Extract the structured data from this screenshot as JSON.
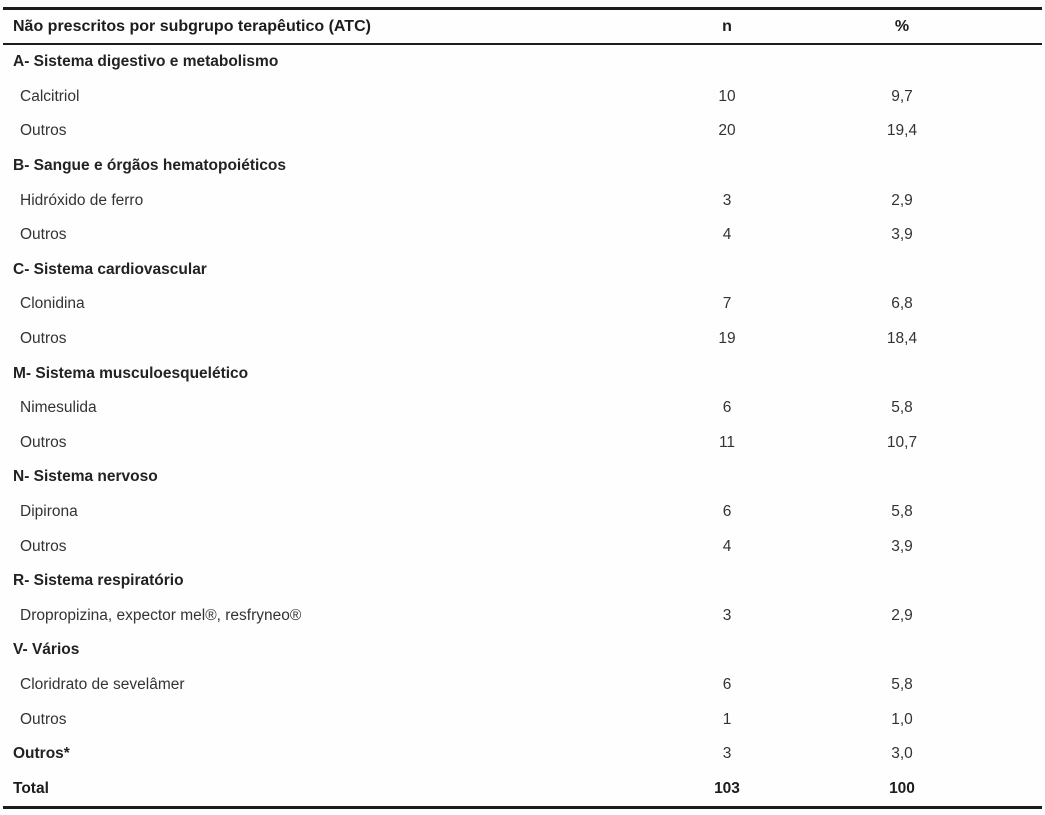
{
  "table": {
    "header": {
      "col1": "Não prescritos por subgrupo terapêutico (ATC)",
      "col2": "n",
      "col3": "%"
    },
    "rows": [
      {
        "type": "group",
        "label": "A- Sistema digestivo e metabolismo",
        "n": "",
        "pct": ""
      },
      {
        "type": "item",
        "label": "Calcitriol",
        "n": "10",
        "pct": "9,7"
      },
      {
        "type": "item",
        "label": "Outros",
        "n": "20",
        "pct": "19,4"
      },
      {
        "type": "group",
        "label": "B- Sangue e órgãos hematopoiéticos",
        "n": "",
        "pct": ""
      },
      {
        "type": "item",
        "label": "Hidróxido de ferro",
        "n": "3",
        "pct": "2,9"
      },
      {
        "type": "item",
        "label": "Outros",
        "n": "4",
        "pct": "3,9"
      },
      {
        "type": "group",
        "label": "C- Sistema cardiovascular",
        "n": "",
        "pct": ""
      },
      {
        "type": "item",
        "label": "Clonidina",
        "n": "7",
        "pct": "6,8"
      },
      {
        "type": "item",
        "label": "Outros",
        "n": "19",
        "pct": "18,4"
      },
      {
        "type": "group",
        "label": "M- Sistema musculoesquelético",
        "n": "",
        "pct": ""
      },
      {
        "type": "item",
        "label": "Nimesulida",
        "n": "6",
        "pct": "5,8"
      },
      {
        "type": "item",
        "label": "Outros",
        "n": "11",
        "pct": "10,7"
      },
      {
        "type": "group",
        "label": "N- Sistema nervoso",
        "n": "",
        "pct": ""
      },
      {
        "type": "item",
        "label": "Dipirona",
        "n": "6",
        "pct": "5,8"
      },
      {
        "type": "item",
        "label": "Outros",
        "n": "4",
        "pct": "3,9"
      },
      {
        "type": "group",
        "label": "R- Sistema respiratório",
        "n": "",
        "pct": ""
      },
      {
        "type": "item",
        "label": "Dropropizina, expector mel®, resfryneo®",
        "n": "3",
        "pct": "2,9"
      },
      {
        "type": "group",
        "label": "V- Vários",
        "n": "",
        "pct": ""
      },
      {
        "type": "item",
        "label": "Cloridrato de sevelâmer",
        "n": "6",
        "pct": "5,8"
      },
      {
        "type": "item",
        "label": "Outros",
        "n": "1",
        "pct": "1,0"
      },
      {
        "type": "summary",
        "label": "Outros*",
        "n": "3",
        "pct": "3,0"
      },
      {
        "type": "total",
        "label": "Total",
        "n": "103",
        "pct": "100"
      }
    ]
  },
  "chart_data": {
    "type": "table",
    "title": "Não prescritos por subgrupo terapêutico (ATC)",
    "columns": [
      "Não prescritos por subgrupo terapêutico (ATC)",
      "n",
      "%"
    ],
    "groups": [
      {
        "group": "A- Sistema digestivo e metabolismo",
        "entries": [
          {
            "label": "Calcitriol",
            "n": 10,
            "pct": "9,7"
          },
          {
            "label": "Outros",
            "n": 20,
            "pct": "19,4"
          }
        ]
      },
      {
        "group": "B- Sangue e órgãos hematopoiéticos",
        "entries": [
          {
            "label": "Hidróxido de ferro",
            "n": 3,
            "pct": "2,9"
          },
          {
            "label": "Outros",
            "n": 4,
            "pct": "3,9"
          }
        ]
      },
      {
        "group": "C- Sistema cardiovascular",
        "entries": [
          {
            "label": "Clonidina",
            "n": 7,
            "pct": "6,8"
          },
          {
            "label": "Outros",
            "n": 19,
            "pct": "18,4"
          }
        ]
      },
      {
        "group": "M- Sistema musculoesquelético",
        "entries": [
          {
            "label": "Nimesulida",
            "n": 6,
            "pct": "5,8"
          },
          {
            "label": "Outros",
            "n": 11,
            "pct": "10,7"
          }
        ]
      },
      {
        "group": "N- Sistema nervoso",
        "entries": [
          {
            "label": "Dipirona",
            "n": 6,
            "pct": "5,8"
          },
          {
            "label": "Outros",
            "n": 4,
            "pct": "3,9"
          }
        ]
      },
      {
        "group": "R- Sistema respiratório",
        "entries": [
          {
            "label": "Dropropizina, expector mel®, resfryneo®",
            "n": 3,
            "pct": "2,9"
          }
        ]
      },
      {
        "group": "V- Vários",
        "entries": [
          {
            "label": "Cloridrato de sevelâmer",
            "n": 6,
            "pct": "5,8"
          },
          {
            "label": "Outros",
            "n": 1,
            "pct": "1,0"
          }
        ]
      },
      {
        "group": "Outros*",
        "entries": [
          {
            "label": "Outros*",
            "n": 3,
            "pct": "3,0"
          }
        ]
      }
    ],
    "total": {
      "label": "Total",
      "n": 103,
      "pct": "100"
    }
  }
}
